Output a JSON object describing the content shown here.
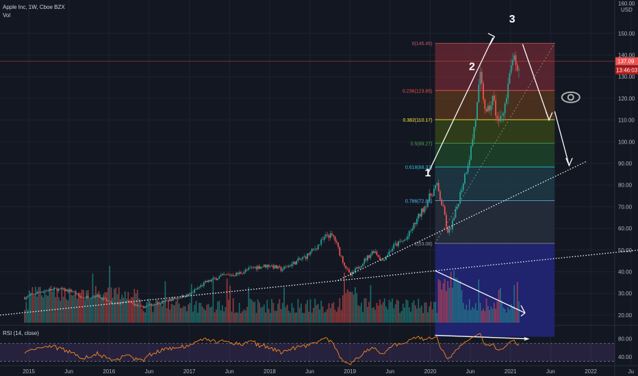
{
  "header": {
    "symbol_line": "Apple Inc, 1W, Cboe BZX",
    "volume_label": "Vol",
    "rsi_label": "RSI (14, close)"
  },
  "price_axis": {
    "currency": "USD",
    "current_price": "137.09",
    "countdown": "13:46:03",
    "top_tick": "160.00"
  },
  "colors": {
    "up": "#26a69a",
    "down": "#ef5350",
    "rsi_line": "#ff8c1a",
    "rsi_band": "#7e57c2",
    "annotation": "#ffffff"
  },
  "chart_data": {
    "type": "candlestick",
    "x_ticks": [
      "2015",
      "Jun",
      "2016",
      "Jun",
      "2017",
      "Jun",
      "2018",
      "Jun",
      "2019",
      "Jun",
      "2020",
      "Jun",
      "2021",
      "Jun",
      "2022",
      "Ju"
    ],
    "y_ticks": [
      20,
      30,
      40,
      50,
      60,
      70,
      80,
      90,
      100,
      110,
      120,
      130,
      140,
      150
    ],
    "ylim": [
      10,
      160
    ],
    "price_path": [
      {
        "t": 2014.95,
        "p": 28
      },
      {
        "t": 2015.15,
        "p": 31
      },
      {
        "t": 2015.35,
        "p": 32
      },
      {
        "t": 2015.55,
        "p": 31
      },
      {
        "t": 2015.65,
        "p": 28
      },
      {
        "t": 2015.85,
        "p": 29
      },
      {
        "t": 2016.05,
        "p": 25
      },
      {
        "t": 2016.25,
        "p": 26
      },
      {
        "t": 2016.4,
        "p": 23.5
      },
      {
        "t": 2016.6,
        "p": 25.5
      },
      {
        "t": 2016.85,
        "p": 28
      },
      {
        "t": 2017.0,
        "p": 29.5
      },
      {
        "t": 2017.2,
        "p": 35
      },
      {
        "t": 2017.4,
        "p": 38
      },
      {
        "t": 2017.6,
        "p": 39
      },
      {
        "t": 2017.8,
        "p": 42
      },
      {
        "t": 2018.0,
        "p": 43
      },
      {
        "t": 2018.15,
        "p": 41
      },
      {
        "t": 2018.3,
        "p": 44
      },
      {
        "t": 2018.45,
        "p": 47
      },
      {
        "t": 2018.6,
        "p": 52
      },
      {
        "t": 2018.72,
        "p": 57
      },
      {
        "t": 2018.8,
        "p": 56
      },
      {
        "t": 2018.9,
        "p": 46
      },
      {
        "t": 2019.0,
        "p": 38
      },
      {
        "t": 2019.1,
        "p": 42
      },
      {
        "t": 2019.3,
        "p": 50
      },
      {
        "t": 2019.4,
        "p": 45
      },
      {
        "t": 2019.55,
        "p": 52
      },
      {
        "t": 2019.7,
        "p": 55
      },
      {
        "t": 2019.85,
        "p": 65
      },
      {
        "t": 2020.0,
        "p": 75
      },
      {
        "t": 2020.08,
        "p": 80
      },
      {
        "t": 2020.18,
        "p": 66
      },
      {
        "t": 2020.22,
        "p": 57
      },
      {
        "t": 2020.3,
        "p": 65
      },
      {
        "t": 2020.4,
        "p": 80
      },
      {
        "t": 2020.5,
        "p": 95
      },
      {
        "t": 2020.58,
        "p": 115
      },
      {
        "t": 2020.62,
        "p": 130
      },
      {
        "t": 2020.7,
        "p": 112
      },
      {
        "t": 2020.78,
        "p": 120
      },
      {
        "t": 2020.85,
        "p": 108
      },
      {
        "t": 2020.95,
        "p": 120
      },
      {
        "t": 2021.03,
        "p": 140
      },
      {
        "t": 2021.08,
        "p": 130
      },
      {
        "t": 2021.12,
        "p": 137
      }
    ],
    "fib_levels": [
      {
        "ratio": "0",
        "price": 145.45,
        "label": "0(145.45)",
        "color": "#c75b67"
      },
      {
        "ratio": "0.236",
        "price": 123.65,
        "label": "0.236(123.65)",
        "color": "#ef5350"
      },
      {
        "ratio": "0.382",
        "price": 110.17,
        "label": "0.382(110.17)",
        "color": "#ffeb3b"
      },
      {
        "ratio": "0.5",
        "price": 99.27,
        "label": "0.5(99.27)",
        "color": "#4caf50"
      },
      {
        "ratio": "0.618",
        "price": 88.37,
        "label": "0.618(88.37)",
        "color": "#26c6da"
      },
      {
        "ratio": "0.786",
        "price": 72.85,
        "label": "0.786(72.85)",
        "color": "#4fc3f7"
      },
      {
        "ratio": "1",
        "price": 53.08,
        "label": "1(53.08)",
        "color": "#9e9e9e"
      }
    ],
    "wave_labels": [
      {
        "text": "1",
        "t": 2019.97,
        "p": 84
      },
      {
        "text": "2",
        "t": 2020.52,
        "p": 133
      },
      {
        "text": "3",
        "t": 2021.02,
        "p": 155
      }
    ],
    "rsi": {
      "levels": [
        70,
        30
      ],
      "ticks": [
        80.0,
        40.0
      ]
    }
  }
}
